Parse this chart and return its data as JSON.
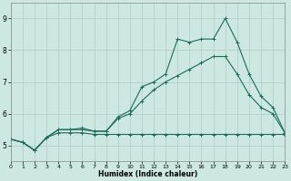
{
  "xlabel": "Humidex (Indice chaleur)",
  "xlim": [
    0,
    23
  ],
  "ylim": [
    4.5,
    9.5
  ],
  "yticks": [
    5,
    6,
    7,
    8,
    9
  ],
  "xticks": [
    0,
    1,
    2,
    3,
    4,
    5,
    6,
    7,
    8,
    9,
    10,
    11,
    12,
    13,
    14,
    15,
    16,
    17,
    18,
    19,
    20,
    21,
    22,
    23
  ],
  "bg_color": "#cce8e0",
  "grid_color": "#aaccc4",
  "line_color": "#1a6b5a",
  "line1_x": [
    0,
    1,
    2,
    3,
    4,
    5,
    6,
    7,
    8,
    9,
    10,
    11,
    12,
    13,
    14,
    15,
    16,
    17,
    18,
    19,
    20,
    21,
    22,
    23
  ],
  "line1_y": [
    5.2,
    5.1,
    4.85,
    5.25,
    5.4,
    5.4,
    5.4,
    5.35,
    5.35,
    5.35,
    5.35,
    5.35,
    5.35,
    5.35,
    5.35,
    5.35,
    5.35,
    5.35,
    5.35,
    5.35,
    5.35,
    5.35,
    5.35,
    5.35
  ],
  "line2_x": [
    0,
    1,
    2,
    3,
    4,
    5,
    6,
    7,
    8,
    9,
    10,
    11,
    12,
    13,
    14,
    15,
    16,
    17,
    18,
    19,
    20,
    21,
    22,
    23
  ],
  "line2_y": [
    5.2,
    5.1,
    4.85,
    5.25,
    5.5,
    5.5,
    5.5,
    5.45,
    5.45,
    5.85,
    6.0,
    6.4,
    6.75,
    7.0,
    7.2,
    7.4,
    7.6,
    7.8,
    7.8,
    7.25,
    6.6,
    6.2,
    6.0,
    5.4
  ],
  "line3_x": [
    0,
    1,
    2,
    3,
    4,
    5,
    6,
    7,
    8,
    9,
    10,
    11,
    12,
    13,
    14,
    15,
    16,
    17,
    18,
    19,
    20,
    21,
    22,
    23
  ],
  "line3_y": [
    5.2,
    5.1,
    4.85,
    5.25,
    5.5,
    5.5,
    5.55,
    5.45,
    5.45,
    5.9,
    6.1,
    6.85,
    7.0,
    7.25,
    8.35,
    8.25,
    8.35,
    8.35,
    9.0,
    8.25,
    7.25,
    6.55,
    6.2,
    5.4
  ]
}
